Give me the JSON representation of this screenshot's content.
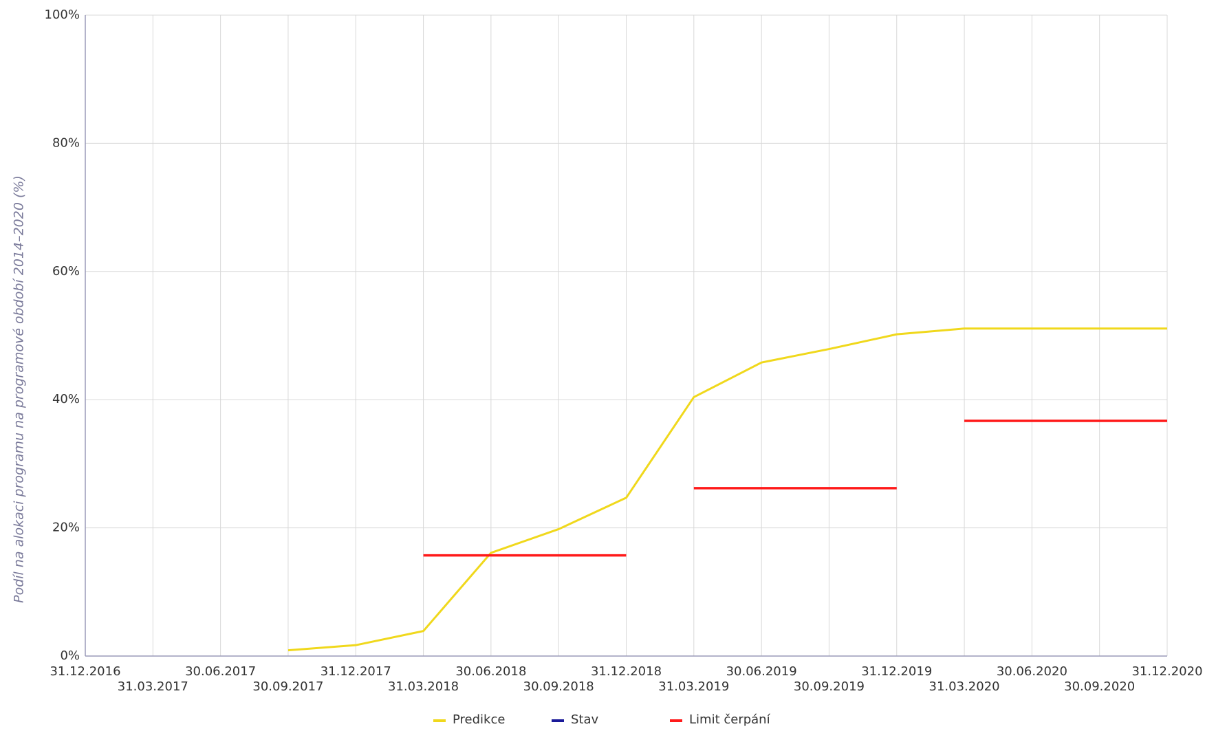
{
  "chart_data": {
    "type": "line",
    "y_label": "Podíl na alokaci programu na programové období 2014–2020 (%)",
    "categories": [
      "31.12.2016",
      "31.03.2017",
      "30.06.2017",
      "30.09.2017",
      "31.12.2017",
      "31.03.2018",
      "30.06.2018",
      "30.09.2018",
      "31.12.2018",
      "31.03.2019",
      "30.06.2019",
      "30.09.2019",
      "31.12.2019",
      "31.03.2020",
      "30.06.2020",
      "30.09.2020",
      "31.12.2020"
    ],
    "series": [
      {
        "name": "Predikce",
        "color": "#f0d81c",
        "values": [
          null,
          null,
          null,
          0.9,
          1.7,
          3.9,
          16.1,
          19.8,
          24.7,
          40.4,
          45.8,
          47.9,
          50.2,
          51.1,
          51.1,
          51.1,
          51.1
        ]
      },
      {
        "name": "Stav",
        "color": "#1a1a99",
        "values": [
          null,
          null,
          null,
          null,
          null,
          null,
          null,
          null,
          null,
          null,
          null,
          null,
          null,
          null,
          null,
          null,
          null
        ]
      },
      {
        "name": "Limit čerpání",
        "color": "#ff1a1a",
        "segments": [
          {
            "from": "31.03.2018",
            "to": "31.12.2018",
            "value": 15.7
          },
          {
            "from": "31.03.2019",
            "to": "31.12.2019",
            "value": 26.2
          },
          {
            "from": "31.03.2020",
            "to": "31.12.2020",
            "value": 36.7
          }
        ]
      }
    ],
    "ylim": [
      0,
      100
    ],
    "yticks": [
      {
        "value": 0,
        "label": "0%"
      },
      {
        "value": 20,
        "label": "20%"
      },
      {
        "value": 40,
        "label": "40%"
      },
      {
        "value": 60,
        "label": "60%"
      },
      {
        "value": 80,
        "label": "80%"
      },
      {
        "value": 100,
        "label": "100%"
      }
    ],
    "grid": true
  }
}
